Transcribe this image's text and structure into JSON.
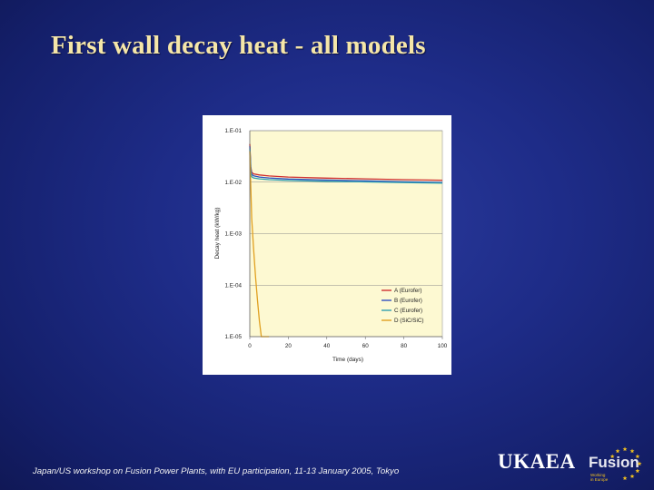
{
  "slide": {
    "title": "First wall decay heat - all models",
    "footer": "Japan/US workshop on Fusion Power Plants, with EU participation, 11-13 January 2005, Tokyo"
  },
  "logo": {
    "org": "UKAEA",
    "fusion": "Fusion",
    "sub_line1": "Working",
    "sub_line2": "in Europe",
    "star_color": "#f0c020"
  },
  "chart_data": {
    "type": "line",
    "title": "",
    "xlabel": "Time (days)",
    "ylabel": "Decay heat (kW/kg)",
    "xlim": [
      0,
      100
    ],
    "ylim": [
      1e-05,
      0.1
    ],
    "yscale": "log",
    "x_ticks": [
      0,
      20,
      40,
      60,
      80,
      100
    ],
    "x_tick_labels": [
      "0",
      "20",
      "40",
      "60",
      "80",
      "100"
    ],
    "y_ticks": [
      1e-05,
      0.0001,
      0.001,
      0.01,
      0.1
    ],
    "y_tick_labels": [
      "1.E-05",
      "1.E-04",
      "1.E-03",
      "1.E-02",
      "1.E-01"
    ],
    "grid": "horizontal",
    "plot_background": "#fdf9d2",
    "legend_position": "lower-right",
    "series": [
      {
        "name": "A (Eurofer)",
        "color": "#d03030",
        "x": [
          0,
          0.5,
          1,
          2,
          5,
          10,
          20,
          40,
          60,
          80,
          100
        ],
        "y": [
          0.055,
          0.02,
          0.0155,
          0.0145,
          0.0138,
          0.0132,
          0.0126,
          0.012,
          0.0116,
          0.0112,
          0.0109
        ]
      },
      {
        "name": "B (Eurofer)",
        "color": "#3050c0",
        "x": [
          0,
          0.5,
          1,
          2,
          5,
          10,
          20,
          40,
          60,
          80,
          100
        ],
        "y": [
          0.05,
          0.018,
          0.0142,
          0.0133,
          0.0126,
          0.0121,
          0.0115,
          0.011,
          0.0106,
          0.0102,
          0.0099
        ]
      },
      {
        "name": "C (Eurofer)",
        "color": "#30a0b0",
        "x": [
          0,
          0.5,
          1,
          2,
          5,
          10,
          20,
          40,
          60,
          80,
          100
        ],
        "y": [
          0.045,
          0.016,
          0.0128,
          0.0121,
          0.0116,
          0.0112,
          0.0108,
          0.0104,
          0.0101,
          0.0098,
          0.0096
        ]
      },
      {
        "name": "D (SiC/SiC)",
        "color": "#e0a020",
        "x": [
          0,
          0.5,
          1,
          2,
          3,
          4,
          5,
          6,
          7,
          8,
          9,
          10
        ],
        "y": [
          0.04,
          0.008,
          0.002,
          0.0005,
          0.00014,
          5e-05,
          2e-05,
          1e-05,
          1e-05,
          1e-05,
          1e-05,
          1e-05
        ]
      }
    ]
  }
}
